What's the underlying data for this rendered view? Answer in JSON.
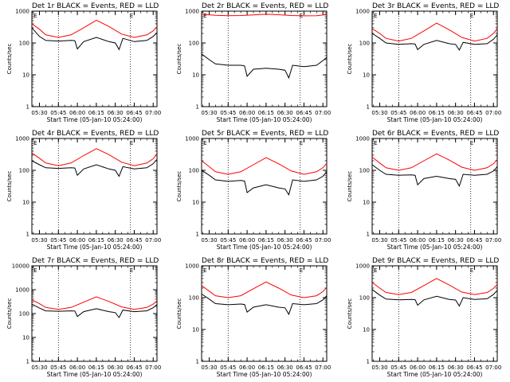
{
  "figure": {
    "ylabel": "Counts/sec",
    "xlabel": "Start Time (05-Jan-10 05:24:00)",
    "x_ticks": [
      "05:30",
      "05:45",
      "06:00",
      "06:15",
      "06:30",
      "06:45",
      "07:00"
    ],
    "eclipse_marker": "E",
    "colors": {
      "events": "#000000",
      "lld": "#ff0000",
      "background": "#ffffff"
    }
  },
  "chart_data": [
    {
      "type": "line",
      "title": "Det 1r BLACK = Events, RED = LLD",
      "y_scale": "log",
      "ylim": [
        1,
        1000
      ],
      "y_ticks": [
        "1",
        "10",
        "100",
        "1000"
      ],
      "xlim": [
        "05:24",
        "07:03"
      ],
      "dotted_vlines": [
        "05:45",
        "06:42"
      ],
      "marker_E": [
        "05:26",
        "06:42"
      ],
      "series": [
        {
          "name": "Events",
          "color": "#000000",
          "x": [
            "05:24",
            "05:30",
            "05:35",
            "05:45",
            "05:55",
            "05:58",
            "06:00",
            "06:05",
            "06:15",
            "06:25",
            "06:30",
            "06:33",
            "06:36",
            "06:45",
            "06:55",
            "07:00",
            "07:03"
          ],
          "values": [
            300,
            160,
            120,
            115,
            120,
            118,
            65,
            110,
            150,
            110,
            100,
            62,
            140,
            110,
            120,
            160,
            210
          ]
        },
        {
          "name": "LLD",
          "color": "#ff0000",
          "x": [
            "05:24",
            "05:30",
            "05:35",
            "05:45",
            "05:55",
            "06:05",
            "06:15",
            "06:25",
            "06:35",
            "06:45",
            "06:55",
            "07:00",
            "07:03"
          ],
          "values": [
            400,
            270,
            180,
            150,
            180,
            300,
            520,
            330,
            190,
            150,
            180,
            240,
            320
          ]
        }
      ]
    },
    {
      "type": "line",
      "title": "Det 2r BLACK = Events, RED = LLD",
      "y_scale": "log",
      "ylim": [
        1,
        1000
      ],
      "y_ticks": [
        "1",
        "10",
        "100",
        "1000"
      ],
      "xlim": [
        "05:24",
        "07:03"
      ],
      "dotted_vlines": [
        "05:45",
        "06:42"
      ],
      "marker_E": [
        "05:26",
        "06:42"
      ],
      "series": [
        {
          "name": "Events",
          "color": "#000000",
          "x": [
            "05:24",
            "05:30",
            "05:35",
            "05:45",
            "05:55",
            "05:58",
            "06:00",
            "06:05",
            "06:15",
            "06:25",
            "06:30",
            "06:33",
            "06:36",
            "06:45",
            "06:55",
            "07:00",
            "07:03"
          ],
          "values": [
            45,
            30,
            22,
            20,
            20,
            19,
            9,
            15,
            16,
            15,
            14,
            8,
            20,
            18,
            20,
            28,
            35
          ]
        },
        {
          "name": "LLD",
          "color": "#ff0000",
          "x": [
            "05:24",
            "05:35",
            "05:45",
            "05:55",
            "06:05",
            "06:15",
            "06:25",
            "06:35",
            "06:45",
            "06:55",
            "07:03"
          ],
          "values": [
            800,
            740,
            720,
            730,
            760,
            800,
            770,
            730,
            710,
            720,
            780
          ]
        }
      ]
    },
    {
      "type": "line",
      "title": "Det 3r BLACK = Events, RED = LLD",
      "y_scale": "log",
      "ylim": [
        1,
        1000
      ],
      "y_ticks": [
        "1",
        "10",
        "100",
        "1000"
      ],
      "xlim": [
        "05:24",
        "07:03"
      ],
      "dotted_vlines": [
        "05:45",
        "06:42"
      ],
      "marker_E": [
        "05:26",
        "06:42"
      ],
      "series": [
        {
          "name": "Events",
          "color": "#000000",
          "x": [
            "05:24",
            "05:30",
            "05:35",
            "05:45",
            "05:55",
            "05:58",
            "06:00",
            "06:05",
            "06:15",
            "06:25",
            "06:30",
            "06:33",
            "06:36",
            "06:45",
            "06:55",
            "07:00",
            "07:03"
          ],
          "values": [
            200,
            140,
            100,
            90,
            95,
            92,
            62,
            90,
            120,
            95,
            90,
            60,
            105,
            90,
            95,
            130,
            180
          ]
        },
        {
          "name": "LLD",
          "color": "#ff0000",
          "x": [
            "05:24",
            "05:30",
            "05:35",
            "05:45",
            "05:55",
            "06:05",
            "06:15",
            "06:25",
            "06:35",
            "06:45",
            "06:55",
            "07:00",
            "07:03"
          ],
          "values": [
            280,
            200,
            140,
            115,
            140,
            240,
            420,
            260,
            150,
            115,
            140,
            200,
            280
          ]
        }
      ]
    },
    {
      "type": "line",
      "title": "Det 4r BLACK = Events, RED = LLD",
      "y_scale": "log",
      "ylim": [
        1,
        1000
      ],
      "y_ticks": [
        "1",
        "10",
        "100",
        "1000"
      ],
      "xlim": [
        "05:24",
        "07:03"
      ],
      "dotted_vlines": [
        "05:45",
        "06:42"
      ],
      "marker_E": [
        "05:26",
        "06:42"
      ],
      "series": [
        {
          "name": "Events",
          "color": "#000000",
          "x": [
            "05:24",
            "05:30",
            "05:35",
            "05:45",
            "05:55",
            "05:58",
            "06:00",
            "06:05",
            "06:15",
            "06:25",
            "06:30",
            "06:33",
            "06:36",
            "06:45",
            "06:55",
            "07:00",
            "07:03"
          ],
          "values": [
            200,
            150,
            120,
            115,
            120,
            118,
            70,
            110,
            150,
            110,
            100,
            65,
            130,
            110,
            120,
            160,
            220
          ]
        },
        {
          "name": "LLD",
          "color": "#ff0000",
          "x": [
            "05:24",
            "05:30",
            "05:35",
            "05:45",
            "05:55",
            "06:05",
            "06:15",
            "06:25",
            "06:35",
            "06:45",
            "06:55",
            "07:00",
            "07:03"
          ],
          "values": [
            350,
            240,
            170,
            140,
            170,
            290,
            480,
            310,
            180,
            140,
            170,
            230,
            330
          ]
        }
      ]
    },
    {
      "type": "line",
      "title": "Det 5r BLACK = Events, RED = LLD",
      "y_scale": "log",
      "ylim": [
        1,
        1000
      ],
      "y_ticks": [
        "1",
        "10",
        "100",
        "1000"
      ],
      "xlim": [
        "05:24",
        "07:03"
      ],
      "dotted_vlines": [
        "05:45",
        "06:42"
      ],
      "marker_E": [
        "05:26",
        "06:42"
      ],
      "series": [
        {
          "name": "Events",
          "color": "#000000",
          "x": [
            "05:24",
            "05:30",
            "05:35",
            "05:45",
            "05:55",
            "05:58",
            "06:00",
            "06:05",
            "06:15",
            "06:25",
            "06:30",
            "06:33",
            "06:36",
            "06:45",
            "06:55",
            "07:00",
            "07:03"
          ],
          "values": [
            100,
            70,
            50,
            45,
            48,
            46,
            20,
            28,
            35,
            28,
            26,
            17,
            50,
            45,
            50,
            65,
            90
          ]
        },
        {
          "name": "LLD",
          "color": "#ff0000",
          "x": [
            "05:24",
            "05:30",
            "05:35",
            "05:45",
            "05:55",
            "06:05",
            "06:15",
            "06:25",
            "06:35",
            "06:45",
            "06:55",
            "07:00",
            "07:03"
          ],
          "values": [
            200,
            130,
            90,
            75,
            90,
            150,
            250,
            160,
            95,
            75,
            90,
            120,
            165
          ]
        }
      ]
    },
    {
      "type": "line",
      "title": "Det 6r BLACK = Events, RED = LLD",
      "y_scale": "log",
      "ylim": [
        1,
        1000
      ],
      "y_ticks": [
        "1",
        "10",
        "100",
        "1000"
      ],
      "xlim": [
        "05:24",
        "07:03"
      ],
      "dotted_vlines": [
        "05:45",
        "06:42"
      ],
      "marker_E": [
        "05:26",
        "06:42"
      ],
      "series": [
        {
          "name": "Events",
          "color": "#000000",
          "x": [
            "05:24",
            "05:30",
            "05:35",
            "05:45",
            "05:55",
            "05:58",
            "06:00",
            "06:05",
            "06:15",
            "06:25",
            "06:30",
            "06:33",
            "06:36",
            "06:45",
            "06:55",
            "07:00",
            "07:03"
          ],
          "values": [
            150,
            100,
            75,
            70,
            72,
            70,
            35,
            55,
            65,
            55,
            52,
            32,
            75,
            70,
            75,
            95,
            130
          ]
        },
        {
          "name": "LLD",
          "color": "#ff0000",
          "x": [
            "05:24",
            "05:30",
            "05:35",
            "05:45",
            "05:55",
            "06:05",
            "06:15",
            "06:25",
            "06:35",
            "06:45",
            "06:55",
            "07:00",
            "07:03"
          ],
          "values": [
            260,
            170,
            120,
            100,
            120,
            200,
            330,
            210,
            125,
            100,
            120,
            160,
            220
          ]
        }
      ]
    },
    {
      "type": "line",
      "title": "Det 7r BLACK = Events, RED = LLD",
      "y_scale": "log",
      "ylim": [
        1,
        10000
      ],
      "y_ticks": [
        "1",
        "10",
        "100",
        "1000",
        "10000"
      ],
      "xlim": [
        "05:24",
        "07:03"
      ],
      "dotted_vlines": [
        "05:45",
        "06:42"
      ],
      "marker_E": [
        "05:26",
        "06:42"
      ],
      "series": [
        {
          "name": "Events",
          "color": "#000000",
          "x": [
            "05:24",
            "05:30",
            "05:35",
            "05:45",
            "05:55",
            "05:58",
            "06:00",
            "06:05",
            "06:15",
            "06:25",
            "06:30",
            "06:33",
            "06:36",
            "06:45",
            "06:55",
            "07:00",
            "07:03"
          ],
          "values": [
            250,
            170,
            130,
            125,
            130,
            128,
            75,
            120,
            160,
            120,
            110,
            68,
            140,
            120,
            130,
            175,
            240
          ]
        },
        {
          "name": "LLD",
          "color": "#ff0000",
          "x": [
            "05:24",
            "05:30",
            "05:35",
            "05:45",
            "05:55",
            "06:05",
            "06:15",
            "06:25",
            "06:35",
            "06:45",
            "06:55",
            "07:00",
            "07:03"
          ],
          "values": [
            380,
            260,
            180,
            150,
            180,
            300,
            500,
            320,
            190,
            150,
            180,
            250,
            340
          ]
        }
      ]
    },
    {
      "type": "line",
      "title": "Det 8r BLACK = Events, RED = LLD",
      "y_scale": "log",
      "ylim": [
        1,
        1000
      ],
      "y_ticks": [
        "1",
        "10",
        "100",
        "1000"
      ],
      "xlim": [
        "05:24",
        "07:03"
      ],
      "dotted_vlines": [
        "05:45",
        "06:42"
      ],
      "marker_E": [
        "05:26",
        "06:42"
      ],
      "series": [
        {
          "name": "Events",
          "color": "#000000",
          "x": [
            "05:24",
            "05:30",
            "05:35",
            "05:45",
            "05:55",
            "05:58",
            "06:00",
            "06:05",
            "06:15",
            "06:25",
            "06:30",
            "06:33",
            "06:36",
            "06:45",
            "06:55",
            "07:00",
            "07:03"
          ],
          "values": [
            130,
            90,
            65,
            60,
            63,
            61,
            35,
            50,
            60,
            50,
            48,
            30,
            65,
            60,
            65,
            85,
            115
          ]
        },
        {
          "name": "LLD",
          "color": "#ff0000",
          "x": [
            "05:24",
            "05:30",
            "05:35",
            "05:45",
            "05:55",
            "06:05",
            "06:15",
            "06:25",
            "06:35",
            "06:45",
            "06:55",
            "07:00",
            "07:03"
          ],
          "values": [
            240,
            160,
            115,
            100,
            115,
            190,
            310,
            200,
            120,
            100,
            115,
            155,
            210
          ]
        }
      ]
    },
    {
      "type": "line",
      "title": "Det 9r BLACK = Events, RED = LLD",
      "y_scale": "log",
      "ylim": [
        1,
        1000
      ],
      "y_ticks": [
        "1",
        "10",
        "100",
        "1000"
      ],
      "xlim": [
        "05:24",
        "07:03"
      ],
      "dotted_vlines": [
        "05:45",
        "06:42"
      ],
      "marker_E": [
        "05:26",
        "06:42"
      ],
      "series": [
        {
          "name": "Events",
          "color": "#000000",
          "x": [
            "05:24",
            "05:30",
            "05:35",
            "05:45",
            "05:55",
            "05:58",
            "06:00",
            "06:05",
            "06:15",
            "06:25",
            "06:30",
            "06:33",
            "06:36",
            "06:45",
            "06:55",
            "07:00",
            "07:03"
          ],
          "values": [
            180,
            120,
            90,
            85,
            88,
            86,
            58,
            85,
            110,
            88,
            84,
            55,
            100,
            88,
            92,
            125,
            170
          ]
        },
        {
          "name": "LLD",
          "color": "#ff0000",
          "x": [
            "05:24",
            "05:30",
            "05:35",
            "05:45",
            "05:55",
            "06:05",
            "06:15",
            "06:25",
            "06:35",
            "06:45",
            "06:55",
            "07:00",
            "07:03"
          ],
          "values": [
            300,
            200,
            145,
            125,
            145,
            240,
            400,
            250,
            150,
            125,
            145,
            195,
            265
          ]
        }
      ]
    }
  ]
}
